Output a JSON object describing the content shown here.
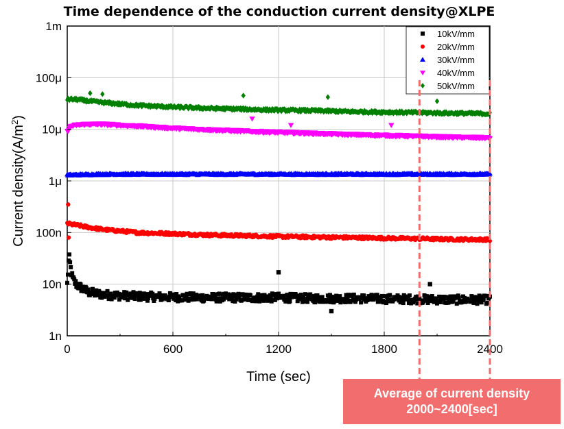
{
  "chart_data": {
    "type": "scatter",
    "title": "Time dependence of the conduction current density@XLPE",
    "xlabel": "Time (sec)",
    "ylabel": "Current density(A/m²)",
    "xlim": [
      0,
      2400
    ],
    "ylim": [
      1e-09,
      0.001
    ],
    "yscale": "log",
    "x_ticks": [
      0,
      600,
      1200,
      1800,
      2400
    ],
    "x_tick_labels": [
      "0",
      "600",
      "1200",
      "1800",
      "2400"
    ],
    "y_ticks": [
      1e-09,
      1e-08,
      1e-07,
      1e-06,
      1e-05,
      0.0001,
      0.001
    ],
    "y_tick_labels": [
      "1n",
      "10n",
      "100n",
      "1μ",
      "10μ",
      "100μ",
      "1m"
    ],
    "grid": true,
    "legend_position": "top-right",
    "series": [
      {
        "name": "10kV/mm",
        "color": "#000000",
        "marker": "square",
        "x": [
          0,
          10,
          20,
          30,
          50,
          80,
          120,
          200,
          300,
          400,
          600,
          800,
          1000,
          1200,
          1400,
          1600,
          1800,
          2000,
          2200,
          2400
        ],
        "y": [
          1e-08,
          3.5e-08,
          2e-08,
          1.3e-08,
          1e-08,
          8.5e-09,
          7e-09,
          6.3e-09,
          6e-09,
          5.8e-09,
          5.6e-09,
          5.5e-09,
          5.5e-09,
          5.5e-09,
          5.3e-09,
          5.3e-09,
          5.2e-09,
          5.1e-09,
          5e-09,
          5e-09
        ],
        "outliers": [
          [
            1200,
            1.7e-08
          ],
          [
            1500,
            3e-09
          ],
          [
            2060,
            1e-08
          ]
        ]
      },
      {
        "name": "20kV/mm",
        "color": "#ff0000",
        "marker": "circle",
        "x": [
          0,
          20,
          50,
          100,
          200,
          400,
          600,
          800,
          1000,
          1200,
          1400,
          1600,
          1800,
          2000,
          2200,
          2400
        ],
        "y": [
          1.5e-07,
          1.45e-07,
          1.4e-07,
          1.3e-07,
          1.15e-07,
          1e-07,
          9.5e-08,
          9e-08,
          8.7e-08,
          8.4e-08,
          8.2e-08,
          8e-08,
          7.8e-08,
          7.6e-08,
          7.4e-08,
          7.3e-08
        ],
        "outliers": [
          [
            5,
            3.5e-07
          ],
          [
            8,
            8e-08
          ]
        ]
      },
      {
        "name": "30kV/mm",
        "color": "#0000ff",
        "marker": "triangle-up",
        "x": [
          0,
          200,
          400,
          600,
          800,
          1000,
          1200,
          1400,
          1600,
          1800,
          2000,
          2200,
          2400
        ],
        "y": [
          1.3e-06,
          1.35e-06,
          1.35e-06,
          1.35e-06,
          1.35e-06,
          1.35e-06,
          1.35e-06,
          1.35e-06,
          1.35e-06,
          1.35e-06,
          1.35e-06,
          1.35e-06,
          1.35e-06
        ]
      },
      {
        "name": "40kV/mm",
        "color": "#ff00ff",
        "marker": "triangle-down",
        "x": [
          0,
          20,
          50,
          100,
          200,
          300,
          400,
          600,
          800,
          1000,
          1200,
          1400,
          1600,
          1800,
          2000,
          2200,
          2400
        ],
        "y": [
          9e-06,
          1.15e-05,
          1.2e-05,
          1.25e-05,
          1.25e-05,
          1.2e-05,
          1.15e-05,
          1.05e-05,
          9.8e-06,
          9.2e-06,
          8.7e-06,
          8.3e-06,
          7.9e-06,
          7.6e-06,
          7.3e-06,
          7e-06,
          6.8e-06
        ],
        "outliers": [
          [
            1050,
            1.6e-05
          ],
          [
            1270,
            1.2e-05
          ],
          [
            1840,
            1.2e-05
          ]
        ]
      },
      {
        "name": "50kV/mm",
        "color": "#008000",
        "marker": "diamond",
        "x": [
          0,
          50,
          100,
          200,
          400,
          600,
          800,
          1000,
          1200,
          1400,
          1600,
          1800,
          2000,
          2200,
          2400
        ],
        "y": [
          3.8e-05,
          3.8e-05,
          3.6e-05,
          3.3e-05,
          2.9e-05,
          2.7e-05,
          2.55e-05,
          2.45e-05,
          2.35e-05,
          2.3e-05,
          2.2e-05,
          2.15e-05,
          2.1e-05,
          2.05e-05,
          2e-05
        ],
        "outliers": [
          [
            130,
            5e-05
          ],
          [
            200,
            4.8e-05
          ],
          [
            1000,
            4.5e-05
          ],
          [
            1480,
            4.2e-05
          ],
          [
            2100,
            3.5e-05
          ]
        ]
      }
    ],
    "annotation": {
      "line1": "Average of current density",
      "line2": "2000~2400[sec]",
      "range": [
        2000,
        2400
      ],
      "color": "#f26d6d"
    }
  }
}
